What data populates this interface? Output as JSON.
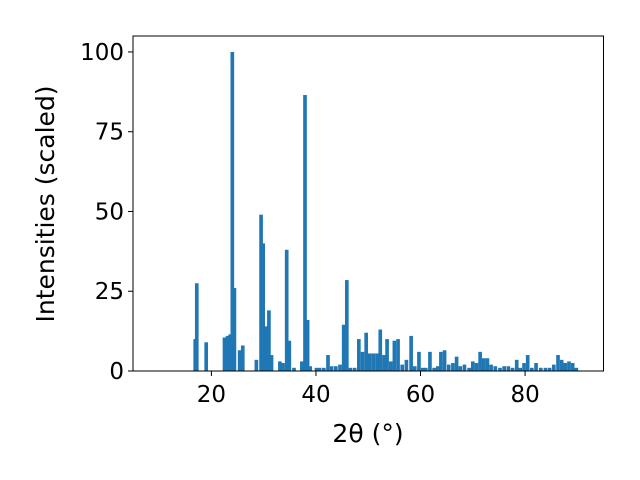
{
  "chart_data": {
    "type": "bar",
    "xlabel": "2θ (°)",
    "ylabel": "Intensities (scaled)",
    "xlim": [
      5,
      95
    ],
    "ylim": [
      0,
      105
    ],
    "xticks": [
      20,
      40,
      60,
      80
    ],
    "yticks": [
      0,
      25,
      50,
      75,
      100
    ],
    "bar_width": 0.7,
    "color": "#1f77b4",
    "grid": false,
    "legend": "none",
    "x": [
      16.9,
      17.2,
      19.0,
      22.5,
      23.1,
      23.6,
      24.0,
      24.4,
      25.4,
      26.0,
      28.6,
      29.5,
      29.9,
      30.5,
      31.0,
      31.5,
      33.1,
      33.7,
      34.4,
      34.9,
      35.8,
      37.3,
      37.9,
      38.4,
      38.9,
      40.1,
      40.7,
      41.5,
      42.3,
      43.0,
      43.8,
      44.6,
      45.3,
      45.9,
      46.6,
      47.4,
      48.2,
      48.9,
      49.6,
      50.3,
      51.0,
      51.7,
      52.3,
      53.0,
      53.6,
      54.3,
      55.0,
      55.7,
      56.5,
      57.3,
      58.2,
      58.9,
      59.7,
      60.4,
      61.0,
      61.8,
      62.6,
      63.3,
      63.9,
      64.6,
      65.4,
      66.2,
      66.9,
      67.6,
      68.4,
      69.3,
      70.0,
      70.7,
      71.4,
      72.1,
      72.8,
      73.5,
      74.3,
      75.2,
      76.0,
      76.8,
      77.6,
      78.4,
      79.1,
      79.8,
      80.5,
      81.3,
      82.1,
      83.0,
      83.9,
      84.7,
      85.5,
      86.3,
      87.0,
      87.7,
      88.4,
      89.1,
      89.8
    ],
    "values": [
      10,
      27.5,
      9,
      10.5,
      11,
      11.5,
      100,
      26,
      6.5,
      8,
      3.5,
      49,
      40,
      14,
      19,
      5,
      3,
      2.5,
      38,
      9.5,
      1,
      3,
      86.5,
      16,
      1.5,
      1,
      1,
      1,
      5,
      1.5,
      1.5,
      2,
      14.5,
      28.5,
      1,
      1,
      10,
      6,
      12,
      5.5,
      5.5,
      5.5,
      13,
      5,
      10,
      3,
      9.5,
      10,
      2,
      3.5,
      11,
      1.5,
      6,
      1,
      1,
      6,
      1,
      1.5,
      6,
      6.5,
      2,
      2.5,
      4.5,
      1.5,
      2,
      1,
      3,
      2.5,
      6,
      4,
      4,
      2,
      1.5,
      1,
      1.5,
      1.5,
      1,
      3.5,
      1,
      2.5,
      5,
      1,
      2.5,
      1,
      1,
      1,
      2,
      5,
      3.5,
      2.5,
      3,
      2.5,
      1
    ]
  }
}
